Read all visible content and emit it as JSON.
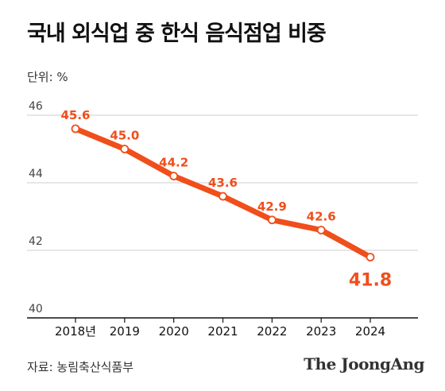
{
  "title": "국내 외식업 중 한식 음식점업 비중",
  "unit_label": "단위: %",
  "source": "자료: 농림축산식품부",
  "brand": "The JoongAng",
  "colors": {
    "line": "#f04e1b",
    "label": "#f04e1b",
    "grid": "#cfcfcf",
    "axis": "#111111",
    "marker_fill": "#ffffff"
  },
  "chart_data": {
    "type": "line",
    "title": "국내 외식업 중 한식 음식점업 비중",
    "xlabel": "",
    "ylabel": "단위: %",
    "ylim": [
      40,
      46
    ],
    "yticks": [
      40,
      42,
      44,
      46
    ],
    "grid": true,
    "categories": [
      "2018년",
      "2019",
      "2020",
      "2021",
      "2022",
      "2023",
      "2024"
    ],
    "series": [
      {
        "values": [
          45.6,
          45.0,
          44.2,
          43.6,
          42.9,
          42.6,
          41.8
        ],
        "labels": [
          "45.6",
          "45.0",
          "44.2",
          "43.6",
          "42.9",
          "42.6",
          "41.8"
        ]
      }
    ]
  }
}
